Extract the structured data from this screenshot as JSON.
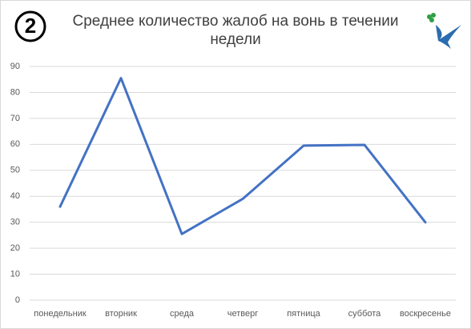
{
  "badge": "2",
  "chart_data": {
    "type": "line",
    "title": "Среднее количество жалоб на вонь в течении недели",
    "categories": [
      "понедельник",
      "вторник",
      "среда",
      "четверг",
      "пятница",
      "суббота",
      "воскресенье"
    ],
    "values": [
      36,
      85.5,
      25.5,
      39,
      59.5,
      59.8,
      30
    ],
    "color": "#4472c4",
    "ylim": [
      0,
      90
    ],
    "yticks": [
      0,
      10,
      20,
      30,
      40,
      50,
      60,
      70,
      80,
      90
    ],
    "grid": true
  }
}
